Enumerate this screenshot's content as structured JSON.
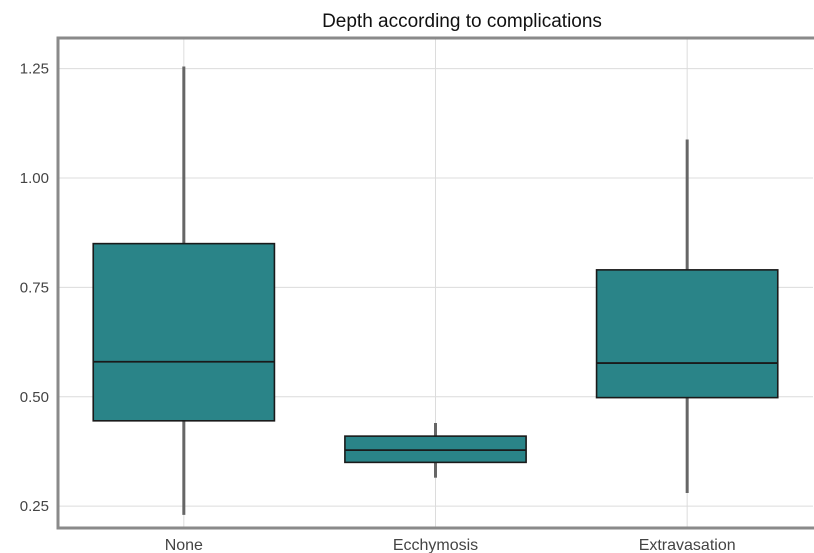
{
  "chart_data": {
    "type": "boxplot",
    "title": "Depth according to complications",
    "xlabel": "",
    "ylabel": "",
    "categories": [
      "None",
      "Ecchymosis",
      "Extravasation"
    ],
    "boxes": [
      {
        "category": "None",
        "whisker_low": 0.23,
        "q1": 0.445,
        "median": 0.58,
        "q3": 0.85,
        "whisker_high": 1.255
      },
      {
        "category": "Ecchymosis",
        "whisker_low": 0.315,
        "q1": 0.35,
        "median": 0.378,
        "q3": 0.41,
        "whisker_high": 0.44
      },
      {
        "category": "Extravasation",
        "whisker_low": 0.28,
        "q1": 0.498,
        "median": 0.577,
        "q3": 0.79,
        "whisker_high": 1.088
      }
    ],
    "yticks": [
      0.25,
      0.5,
      0.75,
      1.0,
      1.25
    ],
    "ytick_labels": [
      "0.25",
      "0.50",
      "0.75",
      "1.00",
      "1.25"
    ],
    "ylim": [
      0.2,
      1.32
    ],
    "grid": true,
    "legend": "none",
    "colors": {
      "box_fill": "#2a8488",
      "whisker": "#666666",
      "frame": "#8a8a8a"
    }
  }
}
